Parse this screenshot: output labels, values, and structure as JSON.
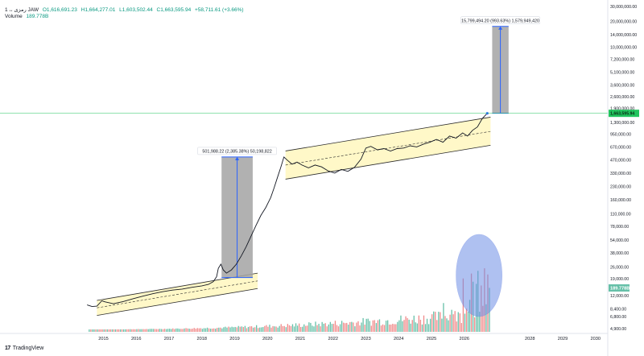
{
  "header": {
    "symbol": "1 ،، رمزی JAW",
    "open": "O1,616,691.23",
    "high": "H1,664,277.01",
    "low": "L1,603,502.44",
    "close": "C1,663,595.94",
    "change": "+58,711.61 (+3.66%)",
    "volume_label": "Volume",
    "volume_value": "189.778B"
  },
  "footer": {
    "logo": "17",
    "brand": "TradingView"
  },
  "colors": {
    "price_line": "#131722",
    "channel_fill": "#fff7c2",
    "channel_edge": "#2a2a2a",
    "projection_box": "#a3a3a3",
    "projection_line": "#2962ff",
    "ellipse_fill": "#6f8fe6",
    "current_price": "#22c55e",
    "vol_up": "#66c0a8",
    "vol_down": "#f08a8a"
  },
  "chart_data": {
    "type": "line",
    "title": "",
    "xlabel": "",
    "ylabel": "",
    "y_scale": "log",
    "xlim": [
      2014.3,
      2030.3
    ],
    "ylim": [
      4900,
      30000000
    ],
    "x_ticks": [
      "2015",
      "2016",
      "2017",
      "2018",
      "2019",
      "2020",
      "2021",
      "2022",
      "2023",
      "2024",
      "2025",
      "2026",
      "2028",
      "2029",
      "2030"
    ],
    "x_tick_values": [
      2015,
      2016,
      2017,
      2018,
      2019,
      2020,
      2021,
      2022,
      2023,
      2024,
      2025,
      2026,
      2028,
      2029,
      2030
    ],
    "y_ticks": [
      {
        "value": 30000000,
        "label": "30,000,000.00"
      },
      {
        "value": 20000000,
        "label": "20,000,000.00"
      },
      {
        "value": 14000000,
        "label": "14,000,000.00"
      },
      {
        "value": 10000000,
        "label": "10,000,000.00"
      },
      {
        "value": 7200000,
        "label": "7,200,000.00"
      },
      {
        "value": 5100000,
        "label": "5,100,000.00"
      },
      {
        "value": 3600000,
        "label": "3,600,000.00"
      },
      {
        "value": 2600000,
        "label": "2,600,000.00"
      },
      {
        "value": 1900000,
        "label": "1,900,000.00"
      },
      {
        "value": 1300000,
        "label": "1,300,000.00"
      },
      {
        "value": 950000,
        "label": "950,000.00"
      },
      {
        "value": 670000,
        "label": "670,000.00"
      },
      {
        "value": 470000,
        "label": "470,000.00"
      },
      {
        "value": 330000,
        "label": "330,000.00"
      },
      {
        "value": 230000,
        "label": "230,000.00"
      },
      {
        "value": 160000,
        "label": "160,000.00"
      },
      {
        "value": 110000,
        "label": "110,000.00"
      },
      {
        "value": 78000,
        "label": "78,000.00"
      },
      {
        "value": 54000,
        "label": "54,000.00"
      },
      {
        "value": 38000,
        "label": "38,000.00"
      },
      {
        "value": 26000,
        "label": "26,000.00"
      },
      {
        "value": 19000,
        "label": "19,000.00"
      },
      {
        "value": 12000,
        "label": "12,000.00"
      },
      {
        "value": 8400,
        "label": "8,400.00"
      },
      {
        "value": 6800,
        "label": "6,800.00"
      },
      {
        "value": 4900,
        "label": "4,900.00"
      }
    ],
    "price_series": [
      [
        2014.5,
        9300
      ],
      [
        2014.65,
        8900
      ],
      [
        2014.8,
        9000
      ],
      [
        2014.95,
        10400
      ],
      [
        2015.05,
        10100
      ],
      [
        2015.3,
        9600
      ],
      [
        2015.6,
        10200
      ],
      [
        2015.9,
        11000
      ],
      [
        2016.2,
        11800
      ],
      [
        2016.5,
        12600
      ],
      [
        2016.8,
        13300
      ],
      [
        2017.1,
        13900
      ],
      [
        2017.4,
        14300
      ],
      [
        2017.7,
        15000
      ],
      [
        2018.0,
        15600
      ],
      [
        2018.2,
        16200
      ],
      [
        2018.35,
        17500
      ],
      [
        2018.45,
        20000
      ],
      [
        2018.5,
        25000
      ],
      [
        2018.58,
        28000
      ],
      [
        2018.65,
        24000
      ],
      [
        2018.75,
        22000
      ],
      [
        2018.9,
        24000
      ],
      [
        2019.05,
        28000
      ],
      [
        2019.2,
        35000
      ],
      [
        2019.35,
        45000
      ],
      [
        2019.5,
        60000
      ],
      [
        2019.65,
        80000
      ],
      [
        2019.8,
        105000
      ],
      [
        2019.95,
        130000
      ],
      [
        2020.1,
        170000
      ],
      [
        2020.2,
        220000
      ],
      [
        2020.3,
        290000
      ],
      [
        2020.4,
        380000
      ],
      [
        2020.5,
        510000
      ],
      [
        2020.6,
        470000
      ],
      [
        2020.75,
        420000
      ],
      [
        2020.9,
        445000
      ],
      [
        2021.05,
        410000
      ],
      [
        2021.25,
        380000
      ],
      [
        2021.45,
        410000
      ],
      [
        2021.65,
        390000
      ],
      [
        2021.85,
        350000
      ],
      [
        2022.05,
        330000
      ],
      [
        2022.25,
        365000
      ],
      [
        2022.45,
        345000
      ],
      [
        2022.65,
        385000
      ],
      [
        2022.85,
        480000
      ],
      [
        2023.0,
        650000
      ],
      [
        2023.15,
        680000
      ],
      [
        2023.35,
        620000
      ],
      [
        2023.55,
        640000
      ],
      [
        2023.75,
        600000
      ],
      [
        2023.95,
        640000
      ],
      [
        2024.15,
        650000
      ],
      [
        2024.35,
        690000
      ],
      [
        2024.55,
        670000
      ],
      [
        2024.75,
        720000
      ],
      [
        2024.95,
        760000
      ],
      [
        2025.15,
        820000
      ],
      [
        2025.35,
        760000
      ],
      [
        2025.55,
        900000
      ],
      [
        2025.75,
        850000
      ],
      [
        2025.95,
        980000
      ],
      [
        2026.1,
        900000
      ],
      [
        2026.25,
        1050000
      ],
      [
        2026.4,
        1150000
      ],
      [
        2026.55,
        1450000
      ],
      [
        2026.7,
        1663595
      ]
    ],
    "channels": [
      {
        "name": "channel-1",
        "upper": [
          [
            2014.8,
            10500
          ],
          [
            2019.7,
            22000
          ]
        ],
        "lower": [
          [
            2014.8,
            7000
          ],
          [
            2019.7,
            14500
          ]
        ],
        "mid": [
          [
            2014.8,
            8600
          ],
          [
            2019.7,
            17800
          ]
        ]
      },
      {
        "name": "channel-2",
        "upper": [
          [
            2020.55,
            600000
          ],
          [
            2026.8,
            1500000
          ]
        ],
        "lower": [
          [
            2020.55,
            280000
          ],
          [
            2026.8,
            700000
          ]
        ],
        "mid": [
          [
            2020.55,
            410000
          ],
          [
            2026.8,
            1020000
          ]
        ]
      }
    ],
    "projections": [
      {
        "x0": 2018.6,
        "x1": 2019.55,
        "y_low": 19500,
        "y_high": 510000,
        "label": "501,988.22 (2,385.38%) 50,198,822"
      },
      {
        "x0": 2026.85,
        "x1": 2027.35,
        "y_low": 1663595,
        "y_high": 17500000,
        "label": "15,799,494.20 (993.63%) 1,579,949,420"
      }
    ],
    "current_price": {
      "value": 1663595.94,
      "label": "1,663,595.94"
    },
    "volume_badge": {
      "label": "189.778B"
    },
    "ellipse": {
      "x0": 2025.75,
      "x1": 2027.15,
      "note": "highlighted volume"
    }
  }
}
